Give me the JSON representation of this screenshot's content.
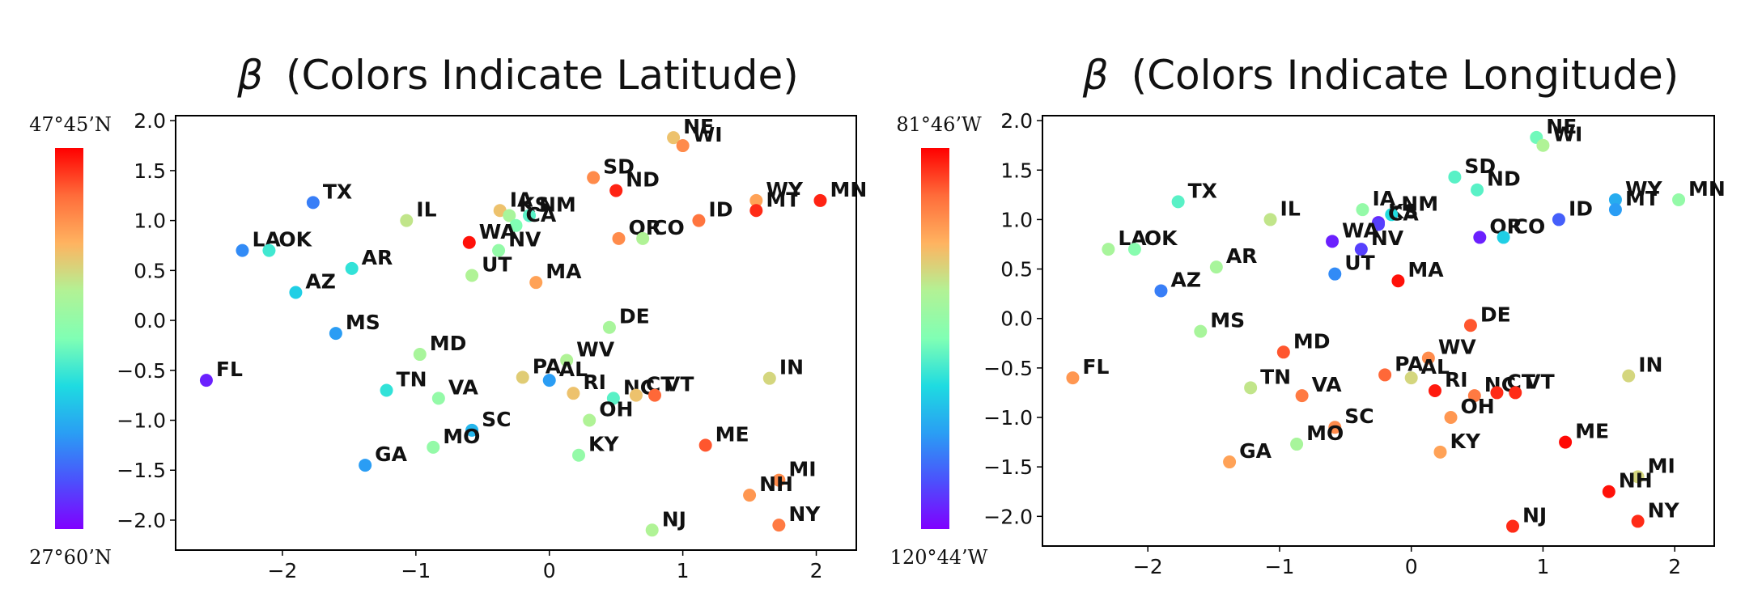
{
  "chart_data": [
    {
      "type": "scatter",
      "title_symbol": "β",
      "title": "(Colors Indicate Latitude)",
      "xlim": [
        -2.8,
        2.3
      ],
      "ylim": [
        -2.3,
        2.05
      ],
      "xticks": [
        -2,
        -1,
        0,
        1,
        2
      ],
      "yticks": [
        2.0,
        1.5,
        1.0,
        0.5,
        0.0,
        -0.5,
        -1.0,
        -1.5,
        -2.0
      ],
      "colorbar": {
        "top_label": "47°45’N",
        "bottom_label": "27°60’N"
      },
      "points": [
        {
          "label": "NE",
          "x": 0.93,
          "y": 1.83,
          "c": 0.72
        },
        {
          "label": "WI",
          "x": 1.0,
          "y": 1.75,
          "c": 0.82
        },
        {
          "label": "SD",
          "x": 0.33,
          "y": 1.43,
          "c": 0.82
        },
        {
          "label": "ND",
          "x": 0.5,
          "y": 1.3,
          "c": 0.96
        },
        {
          "label": "WY",
          "x": 1.55,
          "y": 1.2,
          "c": 0.78
        },
        {
          "label": "MN",
          "x": 2.03,
          "y": 1.2,
          "c": 0.96
        },
        {
          "label": "TX",
          "x": -1.77,
          "y": 1.18,
          "c": 0.2
        },
        {
          "label": "MT",
          "x": 1.55,
          "y": 1.1,
          "c": 0.95
        },
        {
          "label": "IA",
          "x": -0.37,
          "y": 1.1,
          "c": 0.72
        },
        {
          "label": "KS",
          "x": -0.3,
          "y": 1.05,
          "c": 0.6
        },
        {
          "label": "NM",
          "x": -0.15,
          "y": 1.05,
          "c": 0.45
        },
        {
          "label": "IL",
          "x": -1.07,
          "y": 1.0,
          "c": 0.65
        },
        {
          "label": "ID",
          "x": 1.12,
          "y": 1.0,
          "c": 0.86
        },
        {
          "label": "CA",
          "x": -0.25,
          "y": 0.95,
          "c": 0.5
        },
        {
          "label": "OR",
          "x": 0.52,
          "y": 0.82,
          "c": 0.82
        },
        {
          "label": "CO",
          "x": 0.7,
          "y": 0.82,
          "c": 0.62
        },
        {
          "label": "WA",
          "x": -0.6,
          "y": 0.78,
          "c": 0.98
        },
        {
          "label": "NV",
          "x": -0.38,
          "y": 0.7,
          "c": 0.55
        },
        {
          "label": "LA",
          "x": -2.3,
          "y": 0.7,
          "c": 0.22
        },
        {
          "label": "OK",
          "x": -2.1,
          "y": 0.7,
          "c": 0.42
        },
        {
          "label": "AR",
          "x": -1.48,
          "y": 0.52,
          "c": 0.4
        },
        {
          "label": "UT",
          "x": -0.58,
          "y": 0.45,
          "c": 0.62
        },
        {
          "label": "MA",
          "x": -0.1,
          "y": 0.38,
          "c": 0.78
        },
        {
          "label": "AZ",
          "x": -1.9,
          "y": 0.28,
          "c": 0.35
        },
        {
          "label": "DE",
          "x": 0.45,
          "y": -0.07,
          "c": 0.6
        },
        {
          "label": "MS",
          "x": -1.6,
          "y": -0.13,
          "c": 0.25
        },
        {
          "label": "MD",
          "x": -0.97,
          "y": -0.34,
          "c": 0.6
        },
        {
          "label": "WV",
          "x": 0.13,
          "y": -0.4,
          "c": 0.62
        },
        {
          "label": "IN",
          "x": 1.65,
          "y": -0.58,
          "c": 0.68
        },
        {
          "label": "FL",
          "x": -2.57,
          "y": -0.6,
          "c": 0.05
        },
        {
          "label": "PA",
          "x": -0.2,
          "y": -0.57,
          "c": 0.7
        },
        {
          "label": "AL",
          "x": 0.0,
          "y": -0.6,
          "c": 0.25
        },
        {
          "label": "TN",
          "x": -1.22,
          "y": -0.7,
          "c": 0.4
        },
        {
          "label": "RI",
          "x": 0.18,
          "y": -0.73,
          "c": 0.72
        },
        {
          "label": "NC",
          "x": 0.48,
          "y": -0.78,
          "c": 0.45
        },
        {
          "label": "CT",
          "x": 0.65,
          "y": -0.75,
          "c": 0.72
        },
        {
          "label": "VT",
          "x": 0.79,
          "y": -0.75,
          "c": 0.88
        },
        {
          "label": "VA",
          "x": -0.83,
          "y": -0.78,
          "c": 0.55
        },
        {
          "label": "OH",
          "x": 0.3,
          "y": -1.0,
          "c": 0.62
        },
        {
          "label": "SC",
          "x": -0.58,
          "y": -1.1,
          "c": 0.3
        },
        {
          "label": "ME",
          "x": 1.17,
          "y": -1.25,
          "c": 0.9
        },
        {
          "label": "MO",
          "x": -0.87,
          "y": -1.27,
          "c": 0.55
        },
        {
          "label": "KY",
          "x": 0.22,
          "y": -1.35,
          "c": 0.55
        },
        {
          "label": "GA",
          "x": -1.38,
          "y": -1.45,
          "c": 0.25
        },
        {
          "label": "MI",
          "x": 1.72,
          "y": -1.6,
          "c": 0.82
        },
        {
          "label": "NH",
          "x": 1.5,
          "y": -1.75,
          "c": 0.8
        },
        {
          "label": "NY",
          "x": 1.72,
          "y": -2.05,
          "c": 0.85
        },
        {
          "label": "NJ",
          "x": 0.77,
          "y": -2.1,
          "c": 0.62
        }
      ]
    },
    {
      "type": "scatter",
      "title_symbol": "β",
      "title": "(Colors Indicate Longitude)",
      "xlim": [
        -2.8,
        2.3
      ],
      "ylim": [
        -2.3,
        2.05
      ],
      "xticks": [
        -2,
        -1,
        0,
        1,
        2
      ],
      "yticks": [
        2.0,
        1.5,
        1.0,
        0.5,
        0.0,
        -0.5,
        -1.0,
        -1.5,
        -2.0
      ],
      "colorbar": {
        "top_label": "81°46’W",
        "bottom_label": "120°44’W"
      },
      "points": [
        {
          "label": "NE",
          "x": 0.95,
          "y": 1.83,
          "c": 0.48
        },
        {
          "label": "WI",
          "x": 1.0,
          "y": 1.75,
          "c": 0.62
        },
        {
          "label": "SD",
          "x": 0.33,
          "y": 1.43,
          "c": 0.45
        },
        {
          "label": "ND",
          "x": 0.5,
          "y": 1.3,
          "c": 0.45
        },
        {
          "label": "WY",
          "x": 1.55,
          "y": 1.2,
          "c": 0.28
        },
        {
          "label": "MN",
          "x": 2.03,
          "y": 1.2,
          "c": 0.55
        },
        {
          "label": "TX",
          "x": -1.77,
          "y": 1.18,
          "c": 0.45
        },
        {
          "label": "MT",
          "x": 1.55,
          "y": 1.1,
          "c": 0.25
        },
        {
          "label": "IA",
          "x": -0.37,
          "y": 1.1,
          "c": 0.55
        },
        {
          "label": "KS",
          "x": -0.25,
          "y": 0.97,
          "c": 0.06
        },
        {
          "label": "NM",
          "x": -0.15,
          "y": 1.05,
          "c": 0.38
        },
        {
          "label": "IL",
          "x": -1.07,
          "y": 1.0,
          "c": 0.65
        },
        {
          "label": "ID",
          "x": 1.12,
          "y": 1.0,
          "c": 0.15
        },
        {
          "label": "CA",
          "x": -0.25,
          "y": 0.95,
          "c": 0.1
        },
        {
          "label": "OR",
          "x": 0.52,
          "y": 0.82,
          "c": 0.05
        },
        {
          "label": "CO",
          "x": 0.7,
          "y": 0.82,
          "c": 0.35
        },
        {
          "label": "WA",
          "x": -0.6,
          "y": 0.78,
          "c": 0.05
        },
        {
          "label": "NV",
          "x": -0.38,
          "y": 0.7,
          "c": 0.1
        },
        {
          "label": "LA",
          "x": -2.3,
          "y": 0.7,
          "c": 0.6
        },
        {
          "label": "OK",
          "x": -2.1,
          "y": 0.7,
          "c": 0.52
        },
        {
          "label": "AR",
          "x": -1.48,
          "y": 0.52,
          "c": 0.6
        },
        {
          "label": "UT",
          "x": -0.58,
          "y": 0.45,
          "c": 0.22
        },
        {
          "label": "MA",
          "x": -0.1,
          "y": 0.38,
          "c": 0.98
        },
        {
          "label": "AZ",
          "x": -1.9,
          "y": 0.28,
          "c": 0.2
        },
        {
          "label": "DE",
          "x": 0.45,
          "y": -0.07,
          "c": 0.9
        },
        {
          "label": "MS",
          "x": -1.6,
          "y": -0.13,
          "c": 0.6
        },
        {
          "label": "MD",
          "x": -0.97,
          "y": -0.34,
          "c": 0.9
        },
        {
          "label": "WV",
          "x": 0.13,
          "y": -0.4,
          "c": 0.82
        },
        {
          "label": "IN",
          "x": 1.65,
          "y": -0.58,
          "c": 0.68
        },
        {
          "label": "FL",
          "x": -2.57,
          "y": -0.6,
          "c": 0.8
        },
        {
          "label": "PA",
          "x": -0.2,
          "y": -0.57,
          "c": 0.88
        },
        {
          "label": "AL",
          "x": 0.0,
          "y": -0.6,
          "c": 0.68
        },
        {
          "label": "TN",
          "x": -1.22,
          "y": -0.7,
          "c": 0.65
        },
        {
          "label": "RI",
          "x": 0.18,
          "y": -0.73,
          "c": 0.97
        },
        {
          "label": "NC",
          "x": 0.48,
          "y": -0.78,
          "c": 0.85
        },
        {
          "label": "CT",
          "x": 0.65,
          "y": -0.75,
          "c": 0.95
        },
        {
          "label": "VT",
          "x": 0.79,
          "y": -0.75,
          "c": 0.95
        },
        {
          "label": "VA",
          "x": -0.83,
          "y": -0.78,
          "c": 0.85
        },
        {
          "label": "OH",
          "x": 0.3,
          "y": -1.0,
          "c": 0.8
        },
        {
          "label": "SC",
          "x": -0.58,
          "y": -1.1,
          "c": 0.82
        },
        {
          "label": "ME",
          "x": 1.17,
          "y": -1.25,
          "c": 0.99
        },
        {
          "label": "MO",
          "x": -0.87,
          "y": -1.27,
          "c": 0.6
        },
        {
          "label": "KY",
          "x": 0.22,
          "y": -1.35,
          "c": 0.78
        },
        {
          "label": "GA",
          "x": -1.38,
          "y": -1.45,
          "c": 0.78
        },
        {
          "label": "MI",
          "x": 1.72,
          "y": -1.6,
          "c": 0.68
        },
        {
          "label": "NH",
          "x": 1.5,
          "y": -1.75,
          "c": 0.98
        },
        {
          "label": "NY",
          "x": 1.72,
          "y": -2.05,
          "c": 0.95
        },
        {
          "label": "NJ",
          "x": 0.77,
          "y": -2.1,
          "c": 0.95
        }
      ]
    }
  ]
}
